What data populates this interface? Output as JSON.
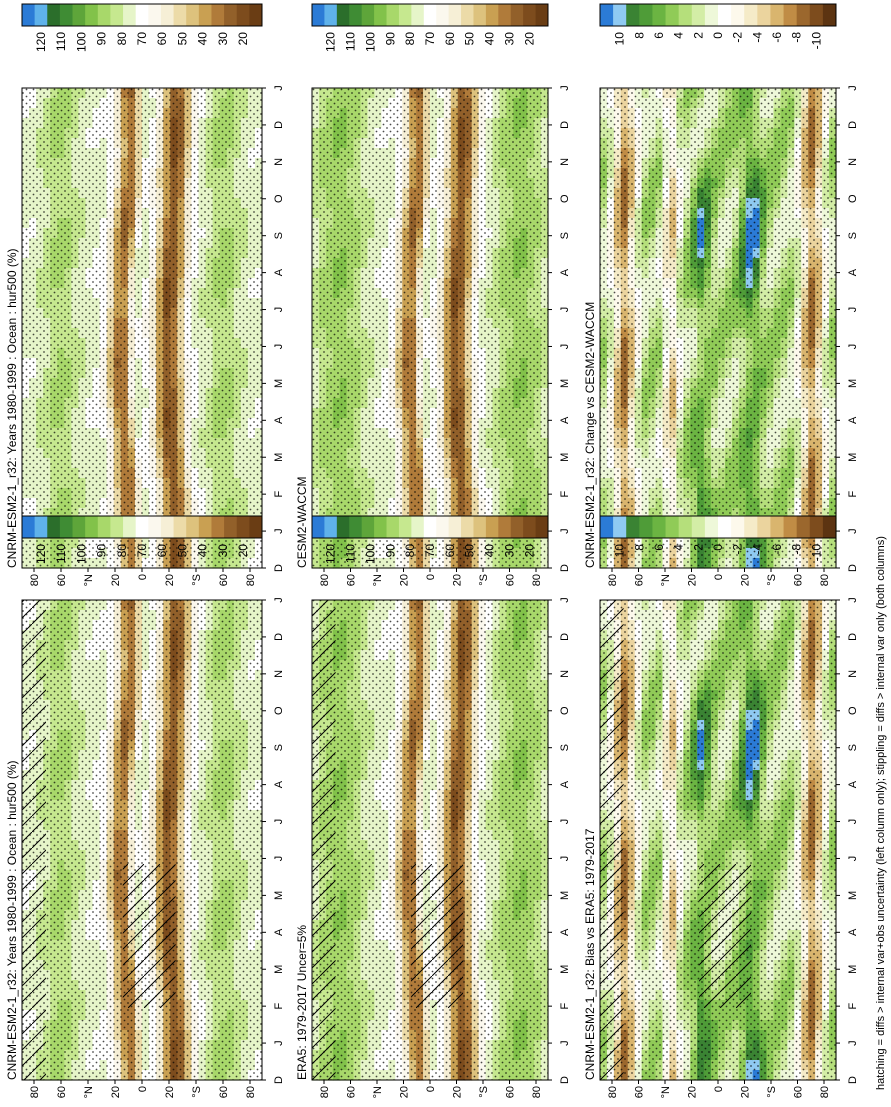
{
  "caption": "hatching = diffs > internal var+obs uncertainty (left column only); stippling = diffs > internal var only (both columns)",
  "colors": {
    "abs_scale": [
      "#6a3d14",
      "#7d4c1d",
      "#92602a",
      "#b07b3a",
      "#c9a052",
      "#ddc27d",
      "#ecdba8",
      "#f6efd6",
      "#fbf8ee",
      "#ffffff",
      "#e6f5c9",
      "#c6e88f",
      "#a8d86a",
      "#82c24a",
      "#5ea53a",
      "#3f8c34",
      "#2b6e2b",
      "#5fb2ea",
      "#2b7bd6"
    ],
    "diff_scale": [
      "#5c3411",
      "#7d4c1d",
      "#9b672d",
      "#c08c45",
      "#d9b56e",
      "#ebd49e",
      "#f5ebc8",
      "#fdf9ec",
      "#ffffff",
      "#eef8d9",
      "#d3eda6",
      "#b5df7b",
      "#90cb57",
      "#6bb442",
      "#4f9c38",
      "#3a8333",
      "#8fcaf2",
      "#2b7bd6"
    ]
  },
  "chart_data": [
    {
      "id": "model_left",
      "type": "heatmap",
      "title": "CNRM-ESM2-1_r32: Years 1980-1999 : Ocean : hur500 (%)",
      "months": [
        "D",
        "J",
        "F",
        "M",
        "A",
        "M",
        "J",
        "J",
        "A",
        "S",
        "O",
        "N",
        "D",
        "J"
      ],
      "lat_ticks": [
        "80",
        "60",
        "°N",
        "20",
        "0",
        "20",
        "°S",
        "60",
        "80"
      ],
      "colorbar_labels": [
        "120",
        "110",
        "100",
        "90",
        "80",
        "70",
        "60",
        "50",
        "40",
        "30",
        "20"
      ],
      "kind": "abs",
      "hatch": "both"
    },
    {
      "id": "model_right",
      "type": "heatmap",
      "title": "CNRM-ESM2-1_r32: Years 1980-1999 : Ocean : hur500 (%)",
      "months": [
        "D",
        "J",
        "F",
        "M",
        "A",
        "M",
        "J",
        "J",
        "A",
        "S",
        "O",
        "N",
        "D",
        "J"
      ],
      "lat_ticks": [
        "80",
        "60",
        "°N",
        "20",
        "0",
        "20",
        "°S",
        "60",
        "80"
      ],
      "colorbar_labels": [
        "120",
        "110",
        "100",
        "90",
        "80",
        "70",
        "60",
        "50",
        "40",
        "30",
        "20"
      ],
      "kind": "abs",
      "hatch": "dots"
    },
    {
      "id": "ref_era5",
      "type": "heatmap",
      "title": "ERA5: 1979-2017 Uncer=5%",
      "months": [
        "D",
        "J",
        "F",
        "M",
        "A",
        "M",
        "J",
        "J",
        "A",
        "S",
        "O",
        "N",
        "D",
        "J"
      ],
      "lat_ticks": [
        "80",
        "60",
        "°N",
        "20",
        "0",
        "20",
        "°S",
        "60",
        "80"
      ],
      "colorbar_labels": [
        "120",
        "110",
        "100",
        "90",
        "80",
        "70",
        "60",
        "50",
        "40",
        "30",
        "20"
      ],
      "kind": "ref",
      "hatch": "both"
    },
    {
      "id": "ref_cesm",
      "type": "heatmap",
      "title": "CESM2-WACCM",
      "months": [
        "D",
        "J",
        "F",
        "M",
        "A",
        "M",
        "J",
        "J",
        "A",
        "S",
        "O",
        "N",
        "D",
        "J"
      ],
      "lat_ticks": [
        "80",
        "60",
        "°N",
        "20",
        "0",
        "20",
        "°S",
        "60",
        "80"
      ],
      "colorbar_labels": [
        "120",
        "110",
        "100",
        "90",
        "80",
        "70",
        "60",
        "50",
        "40",
        "30",
        "20"
      ],
      "kind": "ref",
      "hatch": "dots"
    },
    {
      "id": "bias_era5",
      "type": "heatmap",
      "title": "CNRM-ESM2-1_r32: Bias vs ERA5: 1979-2017",
      "months": [
        "D",
        "J",
        "F",
        "M",
        "A",
        "M",
        "J",
        "J",
        "A",
        "S",
        "O",
        "N",
        "D",
        "J"
      ],
      "lat_ticks": [
        "80",
        "60",
        "°N",
        "20",
        "0",
        "20",
        "°S",
        "60",
        "80"
      ],
      "colorbar_labels": [
        "10",
        "8",
        "6",
        "4",
        "2",
        "0",
        "-2",
        "-4",
        "-6",
        "-8",
        "-10"
      ],
      "kind": "diff",
      "hatch": "both"
    },
    {
      "id": "change_cesm",
      "type": "heatmap",
      "title": "CNRM-ESM2-1_r32: Change vs CESM2-WACCM",
      "months": [
        "D",
        "J",
        "F",
        "M",
        "A",
        "M",
        "J",
        "J",
        "A",
        "S",
        "O",
        "N",
        "D",
        "J"
      ],
      "lat_ticks": [
        "80",
        "60",
        "°N",
        "20",
        "0",
        "20",
        "°S",
        "60",
        "80"
      ],
      "colorbar_labels": [
        "10",
        "8",
        "6",
        "4",
        "2",
        "0",
        "-2",
        "-4",
        "-6",
        "-8",
        "-10"
      ],
      "kind": "diff",
      "hatch": "dots"
    }
  ]
}
